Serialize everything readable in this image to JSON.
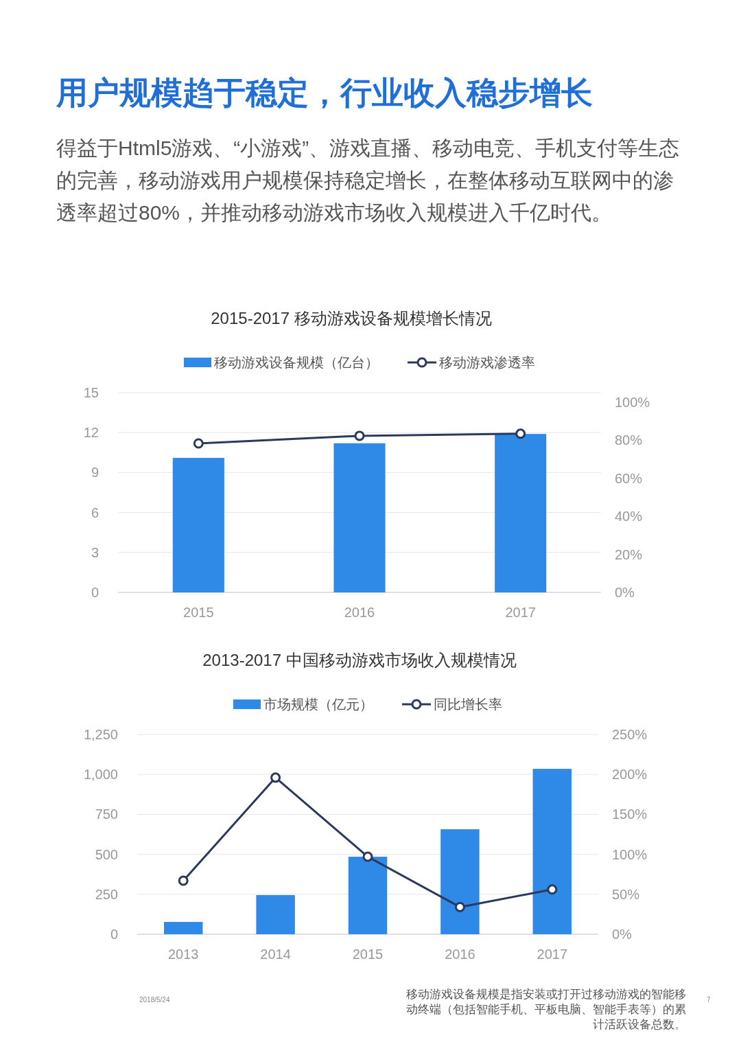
{
  "chart_data": [
    {
      "type": "other",
      "title": "用户规模趋于稳定，行业收入稳步增长",
      "subtitle": "得益于Html5游戏、“小游戏”、游戏直播、移动电竞、手机支付等生态的完善，移动游戏用户规模保持稳定增长，在整体移动互联网中的渗透率超过80%，并推动移动游戏市场收入规模进入千亿时代。"
    },
    {
      "type": "bar",
      "title": "2015-2017 移动游戏设备规模增长情况",
      "categories": [
        "2015",
        "2016",
        "2017"
      ],
      "series": [
        {
          "name": "移动游戏设备规模（亿台）",
          "type": "bar",
          "color": "#2e8ae6",
          "values": [
            10.1,
            11.2,
            11.9
          ]
        },
        {
          "name": "移动游戏渗透率",
          "type": "line",
          "axis": "y2",
          "color": "#2b3a5c",
          "values": [
            78.3,
            82.3,
            83.4
          ]
        }
      ],
      "ylim": [
        0,
        15
      ],
      "yticks": [
        0,
        3,
        6,
        9,
        12,
        15
      ],
      "y2lim": [
        0,
        105
      ],
      "y2ticks": [
        {
          "value": 0,
          "label": "0%"
        },
        {
          "value": 20,
          "label": "20%"
        },
        {
          "value": 40,
          "label": "40%"
        },
        {
          "value": 60,
          "label": "60%"
        },
        {
          "value": 80,
          "label": "80%"
        },
        {
          "value": 100,
          "label": "100%"
        }
      ],
      "grid": "y",
      "legend": "top",
      "marker": "circle"
    },
    {
      "type": "bar",
      "title": "2013-2017 中国移动游戏市场收入规模情况",
      "categories": [
        "2013",
        "2014",
        "2015",
        "2016",
        "2017"
      ],
      "series": [
        {
          "name": "市场规模（亿元）",
          "type": "bar",
          "color": "#2e8ae6",
          "values": [
            77,
            245,
            485,
            657,
            1035
          ]
        },
        {
          "name": "同比增长率",
          "type": "line",
          "axis": "y2",
          "color": "#2b3a5c",
          "values": [
            67,
            196,
            97,
            34,
            56
          ]
        }
      ],
      "ylim": [
        0,
        1250
      ],
      "yticks": [
        0,
        {
          "value": 250,
          "label": "250"
        },
        {
          "value": 500,
          "label": "500"
        },
        {
          "value": 750,
          "label": "750"
        },
        {
          "value": 1000,
          "label": "1,000"
        },
        {
          "value": 1250,
          "label": "1,250"
        }
      ],
      "y2lim": [
        0,
        250
      ],
      "y2ticks": [
        {
          "value": 0,
          "label": "0%"
        },
        {
          "value": 50,
          "label": "50%"
        },
        {
          "value": 100,
          "label": "100%"
        },
        {
          "value": 150,
          "label": "150%"
        },
        {
          "value": 200,
          "label": "200%"
        },
        {
          "value": 250,
          "label": "250%"
        }
      ],
      "grid": "y",
      "legend": "top",
      "marker": "circle",
      "annotations": [
        "2018/5/24",
        "移动游戏设备规模是指安装或打开过移动游戏的智能移动终端（包括智能手机、平板电脑、智能手表等）的累计活跃设备总数。",
        "7"
      ]
    }
  ]
}
